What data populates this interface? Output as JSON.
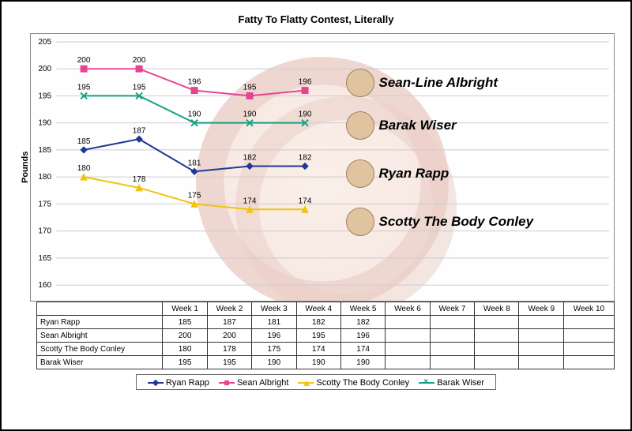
{
  "title": "Fatty To Flatty Contest, Literally",
  "ylabel": "Pounds",
  "ylim": [
    160,
    205
  ],
  "ytick_step": 5,
  "categories": [
    "Week 1",
    "Week 2",
    "Week 3",
    "Week 4",
    "Week 5",
    "Week 6",
    "Week 7",
    "Week 8",
    "Week 9",
    "Week 10"
  ],
  "series": [
    {
      "name": "Ryan Rapp",
      "color": "#1f3a93",
      "marker": "diamond",
      "values": [
        185,
        187,
        181,
        182,
        182
      ]
    },
    {
      "name": "Sean Albright",
      "color": "#e84393",
      "marker": "square",
      "values": [
        200,
        200,
        196,
        195,
        196
      ]
    },
    {
      "name": "Scotty The Body Conley",
      "color": "#f1c40f",
      "marker": "triangle",
      "values": [
        180,
        178,
        175,
        174,
        174
      ]
    },
    {
      "name": "Barak Wiser",
      "color": "#16a085",
      "marker": "x",
      "values": [
        195,
        195,
        190,
        190,
        190
      ]
    }
  ],
  "annotations": [
    {
      "name": "Sean-Line Albright",
      "top_pct": 13
    },
    {
      "name": "Barak Wiser",
      "top_pct": 29
    },
    {
      "name": "Ryan Rapp",
      "top_pct": 47
    },
    {
      "name": "Scotty The Body Conley",
      "top_pct": 65
    }
  ],
  "background_color": "#ffffff",
  "grid_color": "#cccccc",
  "line_width": 2,
  "title_fontsize": 13,
  "label_fontsize": 11
}
